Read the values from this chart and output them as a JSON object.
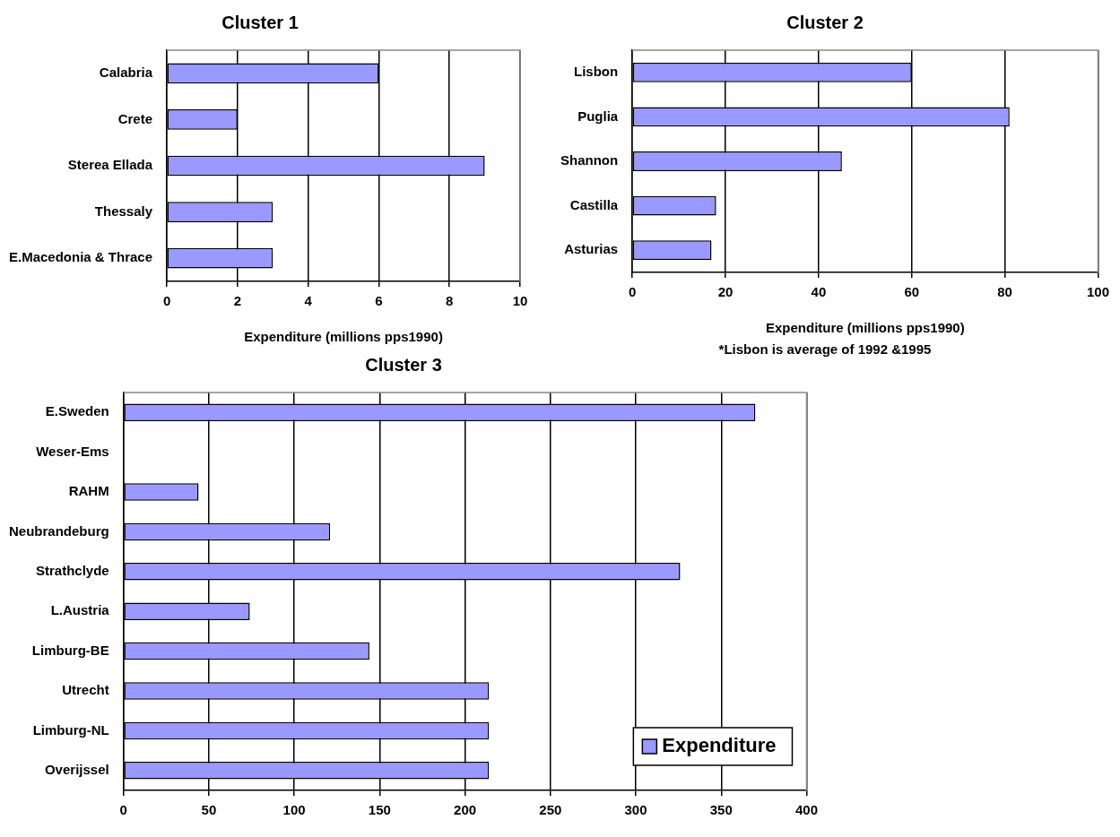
{
  "chart_data": [
    {
      "type": "bar",
      "orientation": "horizontal",
      "title": "Cluster 1",
      "xlabel": "Expenditure (millions pps1990)",
      "categories": [
        "Calabria",
        "Crete",
        "Sterea Ellada",
        "Thessaly",
        "E.Macedonia & Thrace"
      ],
      "values": [
        6,
        2,
        9,
        3,
        3
      ],
      "color": "#9999ff",
      "xlim": [
        0,
        10
      ],
      "xticks": [
        0,
        2,
        4,
        6,
        8,
        10
      ],
      "grid": "x",
      "legend": false
    },
    {
      "type": "bar",
      "orientation": "horizontal",
      "title": "Cluster 2",
      "xlabel": "Expenditure (millions pps1990)",
      "annotations": [
        "*Lisbon is average of 1992 &1995"
      ],
      "categories": [
        "Lisbon",
        "Puglia",
        "Shannon",
        "Castilla",
        "Asturias"
      ],
      "values": [
        60,
        81,
        45,
        18,
        17
      ],
      "color": "#9999ff",
      "xlim": [
        0,
        100
      ],
      "xticks": [
        0,
        20,
        40,
        60,
        80,
        100
      ],
      "grid": "x",
      "legend": false
    },
    {
      "type": "bar",
      "orientation": "horizontal",
      "title": "Cluster 3",
      "categories": [
        "E.Sweden",
        "Weser-Ems",
        "RAHM",
        "Neubrandeburg",
        "Strathclyde",
        "L.Austria",
        "Limburg-BE",
        "Utrecht",
        "Limburg-NL",
        "Overijssel"
      ],
      "series": [
        {
          "name": "Expenditure",
          "color": "#9999ff",
          "values": [
            370,
            null,
            44,
            121,
            326,
            74,
            144,
            214,
            214,
            214
          ]
        }
      ],
      "xlim": [
        0,
        400
      ],
      "xticks": [
        0,
        50,
        100,
        150,
        200,
        250,
        300,
        350,
        400
      ],
      "grid": "x",
      "legend": "bottom right"
    }
  ]
}
